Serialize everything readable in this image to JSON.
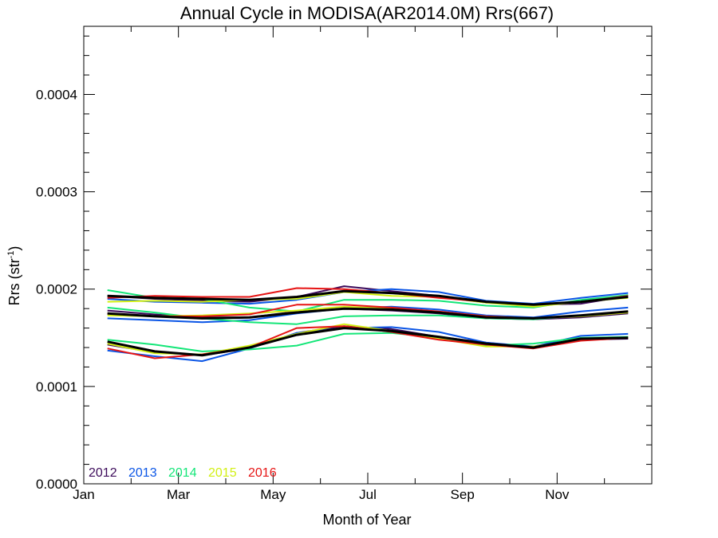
{
  "chart_data": {
    "type": "line",
    "title": "Annual Cycle in MODISA(AR2014.0M) Rrs(667)",
    "xlabel": "Month of Year",
    "ylabel": {
      "main": "Rrs (str",
      "superscript": "-1",
      "close": ")"
    },
    "xlim": [
      0,
      12
    ],
    "ylim": [
      0,
      0.00047
    ],
    "x_ticks": [
      {
        "value": 0,
        "label": "Jan"
      },
      {
        "value": 2,
        "label": "Mar"
      },
      {
        "value": 4,
        "label": "May"
      },
      {
        "value": 6,
        "label": "Jul"
      },
      {
        "value": 8,
        "label": "Sep"
      },
      {
        "value": 10,
        "label": "Nov"
      }
    ],
    "y_ticks": [
      {
        "value": 0.0,
        "label": "0.0000"
      },
      {
        "value": 0.0001,
        "label": "0.0001"
      },
      {
        "value": 0.0002,
        "label": "0.0002"
      },
      {
        "value": 0.0003,
        "label": "0.0003"
      },
      {
        "value": 0.0004,
        "label": "0.0004"
      }
    ],
    "x": [
      0.5,
      1.5,
      2.5,
      3.5,
      4.5,
      5.5,
      6.5,
      7.5,
      8.5,
      9.5,
      10.5,
      11.5
    ],
    "legend_position": "bottom-left",
    "legend": [
      {
        "label": "2012",
        "color": "#3c0a5a"
      },
      {
        "label": "2013",
        "color": "#0a55e6"
      },
      {
        "label": "2014",
        "color": "#14e678"
      },
      {
        "label": "2015",
        "color": "#d2f014"
      },
      {
        "label": "2016",
        "color": "#e61414"
      }
    ],
    "series": [
      {
        "name": "2012",
        "color": "#3c0a5a",
        "width": 2,
        "values": [
          0.000193,
          0.00019,
          0.000188,
          0.000187,
          0.000192,
          0.000203,
          0.000198,
          0.000193,
          0.000186,
          0.000184,
          0.000185,
          0.000193
        ]
      },
      {
        "name": "2013",
        "color": "#0a55e6",
        "width": 2,
        "values": [
          0.00019,
          0.000187,
          0.000186,
          0.000185,
          0.000189,
          0.000197,
          0.0002,
          0.000197,
          0.000188,
          0.000185,
          0.000191,
          0.000196
        ]
      },
      {
        "name": "2014",
        "color": "#14e678",
        "width": 2,
        "values": [
          0.000199,
          0.000191,
          0.00019,
          0.000181,
          0.000177,
          0.000189,
          0.000189,
          0.000188,
          0.000183,
          0.000181,
          0.000189,
          0.000194
        ]
      },
      {
        "name": "2015",
        "color": "#d2f014",
        "width": 2,
        "values": [
          0.000187,
          0.000188,
          0.000187,
          0.000189,
          0.00019,
          0.000197,
          0.000193,
          0.000192,
          0.000186,
          0.000182,
          0.000187,
          0.000191
        ]
      },
      {
        "name": "2016",
        "color": "#e61414",
        "width": 2,
        "values": [
          0.000191,
          0.000193,
          0.000192,
          0.000192,
          0.000201,
          0.0002,
          0.000196,
          0.000191,
          0.000187,
          0.000184,
          0.000187,
          0.000193
        ]
      },
      {
        "name": "",
        "color": "#000000",
        "width": 3,
        "values": [
          0.000193,
          0.000191,
          0.00019,
          0.000189,
          0.000192,
          0.000198,
          0.000196,
          0.000193,
          0.000187,
          0.000184,
          0.000187,
          0.000192
        ]
      },
      {
        "name": "2012",
        "color": "#3c0a5a",
        "width": 2,
        "values": [
          0.000178,
          0.000174,
          0.000171,
          0.000171,
          0.000177,
          0.00018,
          0.000178,
          0.000175,
          0.00017,
          0.000169,
          0.000171,
          0.000175
        ]
      },
      {
        "name": "2013",
        "color": "#0a55e6",
        "width": 2,
        "values": [
          0.00017,
          0.000168,
          0.000166,
          0.000168,
          0.000175,
          0.00018,
          0.000182,
          0.000179,
          0.000173,
          0.000171,
          0.000177,
          0.000181
        ]
      },
      {
        "name": "2014",
        "color": "#14e678",
        "width": 2,
        "values": [
          0.000181,
          0.000176,
          0.00017,
          0.000166,
          0.000164,
          0.000172,
          0.000173,
          0.000173,
          0.00017,
          0.000169,
          0.000173,
          0.000177
        ]
      },
      {
        "name": "2015",
        "color": "#d2f014",
        "width": 2,
        "values": [
          0.000173,
          0.000172,
          0.000173,
          0.000175,
          0.000178,
          0.000182,
          0.00018,
          0.000176,
          0.000172,
          0.00017,
          0.000172,
          0.000176
        ]
      },
      {
        "name": "2016",
        "color": "#e61414",
        "width": 2,
        "values": [
          0.000175,
          0.000172,
          0.000172,
          0.000174,
          0.000184,
          0.000184,
          0.000181,
          0.000177,
          0.000172,
          0.00017,
          0.000173,
          0.000177
        ]
      },
      {
        "name": "",
        "color": "#000000",
        "width": 3,
        "values": [
          0.000175,
          0.000172,
          0.00017,
          0.000171,
          0.000176,
          0.00018,
          0.000179,
          0.000176,
          0.000171,
          0.00017,
          0.000173,
          0.000177
        ]
      },
      {
        "name": "2012",
        "color": "#3c0a5a",
        "width": 2,
        "values": [
          0.000143,
          0.000135,
          0.000132,
          0.000139,
          0.000155,
          0.000162,
          0.000159,
          0.000151,
          0.000145,
          0.00014,
          0.000148,
          0.000149
        ]
      },
      {
        "name": "2013",
        "color": "#0a55e6",
        "width": 2,
        "values": [
          0.000137,
          0.000131,
          0.000126,
          0.000139,
          0.000155,
          0.00016,
          0.000161,
          0.000156,
          0.000145,
          0.000141,
          0.000152,
          0.000154
        ]
      },
      {
        "name": "2014",
        "color": "#14e678",
        "width": 2,
        "values": [
          0.000148,
          0.000143,
          0.000136,
          0.000138,
          0.000142,
          0.000154,
          0.000155,
          0.00015,
          0.000142,
          0.000144,
          0.00015,
          0.000151
        ]
      },
      {
        "name": "2015",
        "color": "#d2f014",
        "width": 2,
        "values": [
          0.000144,
          0.000134,
          0.000133,
          0.000142,
          0.000154,
          0.000164,
          0.000157,
          0.000149,
          0.000141,
          0.000141,
          0.000148,
          0.00015
        ]
      },
      {
        "name": "2016",
        "color": "#e61414",
        "width": 2,
        "values": [
          0.000139,
          0.000129,
          0.000133,
          0.00014,
          0.00016,
          0.000162,
          0.000156,
          0.000148,
          0.000143,
          0.000139,
          0.000147,
          0.00015
        ]
      },
      {
        "name": "",
        "color": "#000000",
        "width": 3,
        "values": [
          0.000146,
          0.000136,
          0.000132,
          0.00014,
          0.000153,
          0.00016,
          0.000157,
          0.000151,
          0.000144,
          0.00014,
          0.000149,
          0.00015
        ]
      }
    ]
  }
}
